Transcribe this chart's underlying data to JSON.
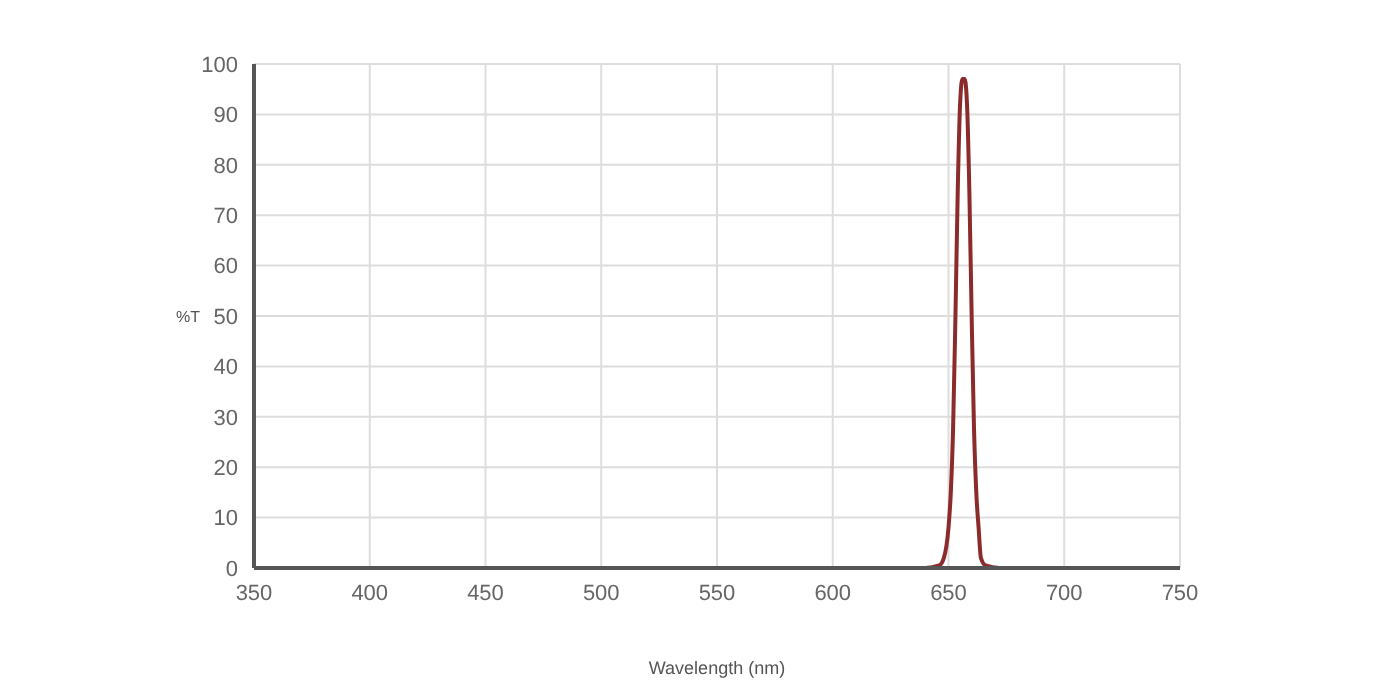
{
  "chart_data": {
    "type": "line",
    "xlabel": "Wavelength (nm)",
    "ylabel": "%T",
    "x": [
      350,
      640,
      646,
      648,
      650,
      651,
      652,
      653,
      654,
      655,
      656,
      657,
      658,
      659,
      660,
      661,
      662,
      663,
      664,
      666,
      672,
      750
    ],
    "series": [
      {
        "color": "#8b2b2b",
        "values": [
          0,
          0,
          0.5,
          2,
          8,
          15,
          28,
          50,
          75,
          92,
          97,
          97,
          92,
          75,
          50,
          28,
          15,
          8,
          2,
          0.5,
          0,
          0
        ]
      }
    ],
    "xlim": [
      350,
      750
    ],
    "xticks": [
      350,
      400,
      450,
      500,
      550,
      600,
      650,
      700,
      750
    ],
    "ylim": [
      0,
      100
    ],
    "yticks": [
      0,
      10,
      20,
      30,
      40,
      50,
      60,
      70,
      80,
      90,
      100
    ],
    "grid": true,
    "legend": false,
    "marker": "none",
    "line_style": "solid"
  }
}
